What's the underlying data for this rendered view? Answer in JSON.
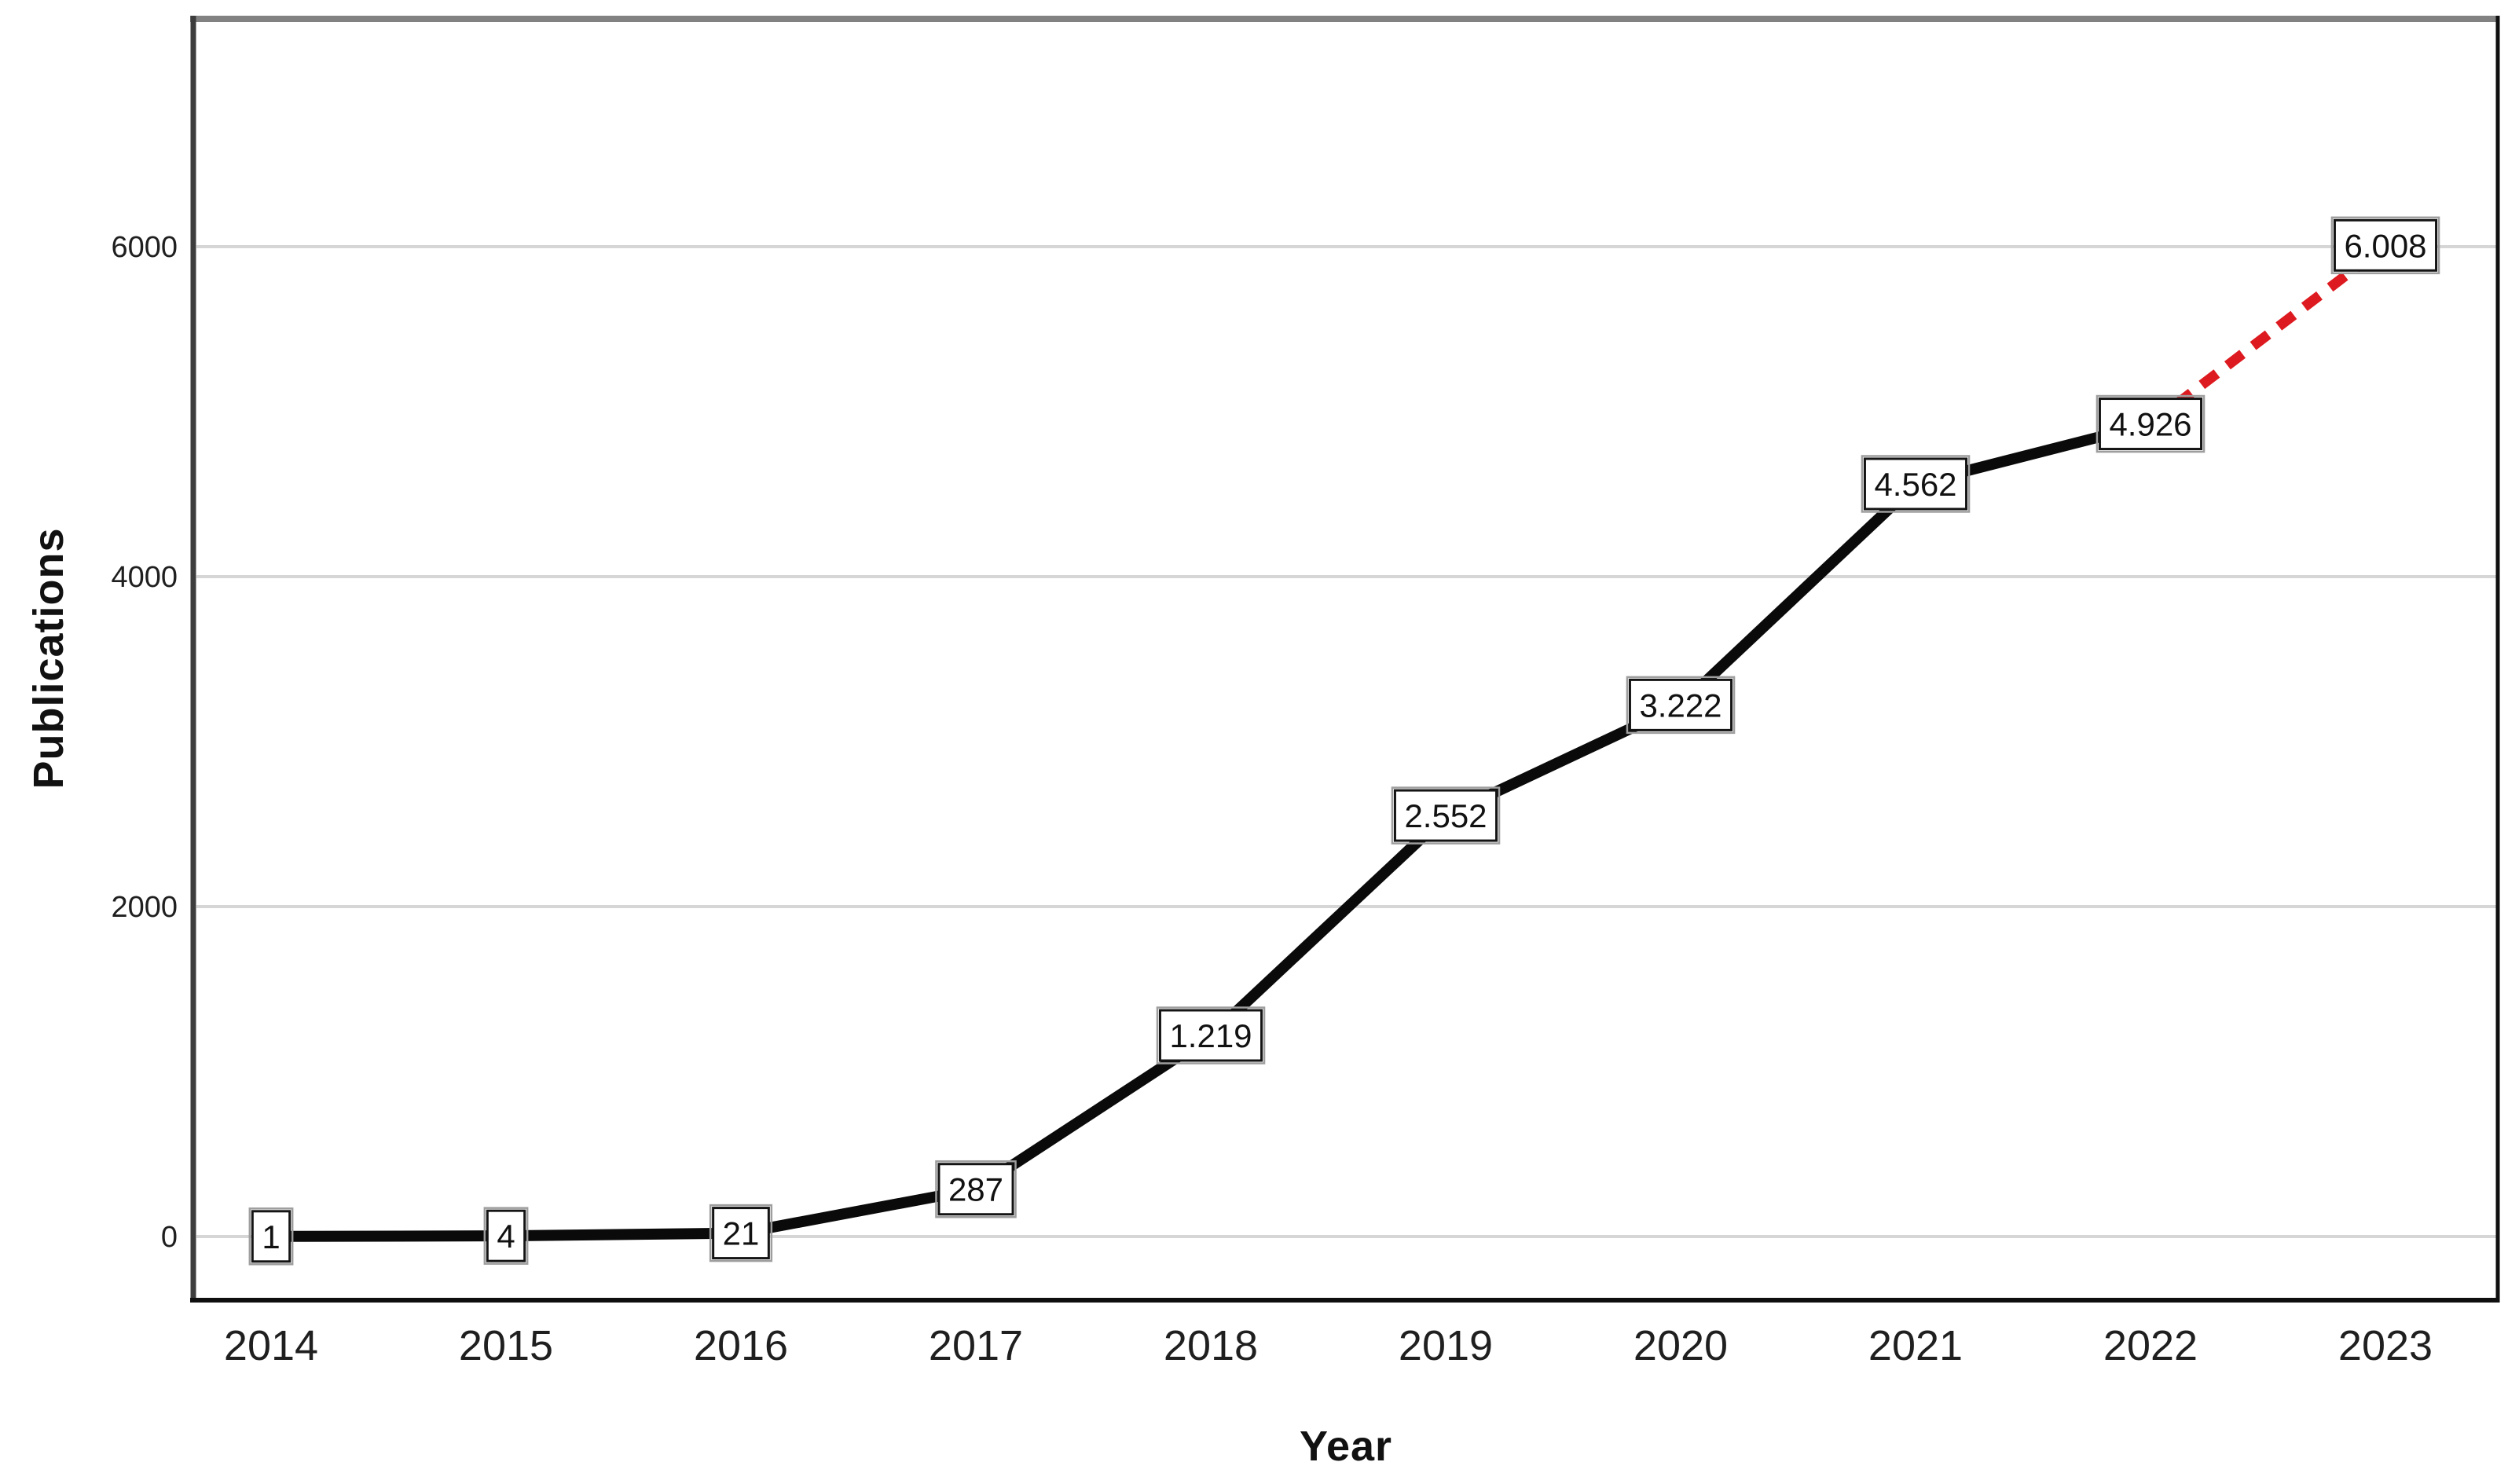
{
  "figure": {
    "background": "#ffffff",
    "kind": "publications-by-year-line-chart"
  },
  "chart_data": {
    "type": "line",
    "title": "",
    "xlabel": "Year",
    "ylabel": "Publications",
    "categories": [
      "2014",
      "2015",
      "2016",
      "2017",
      "2018",
      "2019",
      "2020",
      "2021",
      "2022",
      "2023"
    ],
    "values": [
      1,
      4,
      21,
      287,
      1219,
      2552,
      3222,
      4562,
      4926,
      6008
    ],
    "point_labels": [
      "1",
      "4",
      "21",
      "287",
      "1.219",
      "2.552",
      "3.222",
      "4.562",
      "4.926",
      "6.008"
    ],
    "segments": [
      {
        "name": "actual",
        "style": "solid",
        "color": "#0a0a0a",
        "from_index": 0,
        "to_index": 8,
        "stroke_width": 14
      },
      {
        "name": "projected",
        "style": "dashed",
        "color": "#dd1a1f",
        "from_index": 8,
        "to_index": 9,
        "stroke_width": 13,
        "dash": "24 17"
      }
    ],
    "yticks": [
      0,
      2000,
      4000,
      6000
    ],
    "ytick_labels": [
      "0",
      "2000",
      "4000",
      "6000"
    ],
    "ylim": [
      0,
      7400
    ],
    "grid": true,
    "legend_position": "none",
    "colors": {
      "grid": "#d6d6d6",
      "label_box_fill": "#ffffff",
      "label_box_border": "#141414",
      "label_box_halo": "#9e9e9e",
      "tick_text": "#1f1f1f",
      "frame_top": "#828282",
      "frame_left": "#3d3d3d",
      "frame_bottom": "#0f0f0f",
      "frame_right": "#0f0f0f"
    }
  }
}
